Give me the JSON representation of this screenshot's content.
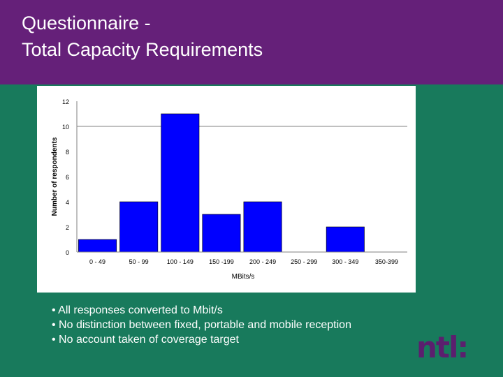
{
  "header": {
    "title_line1": "Questionnaire -",
    "title_line2": "Total Capacity Requirements"
  },
  "colors": {
    "header": "#652079",
    "background": "#187a5c",
    "bar": "#0000ff",
    "logo": "#5b1f6e"
  },
  "chart_data": {
    "type": "bar",
    "title": "",
    "xlabel": "MBits/s",
    "ylabel": "Number of respondents",
    "categories": [
      "0 - 49",
      "50 - 99",
      "100 - 149",
      "150 -199",
      "200 - 249",
      "250 - 299",
      "300 - 349",
      "350-399"
    ],
    "values": [
      1,
      4,
      11,
      3,
      4,
      0,
      2,
      0
    ],
    "ylim": [
      0,
      12
    ],
    "yticks": [
      0,
      2,
      4,
      6,
      8,
      10,
      12
    ],
    "grid": "single horizontal gridline at 10",
    "gridline": 10,
    "legend": "none"
  },
  "bullets": [
    "• All responses converted to Mbit/s",
    "• No distinction between fixed, portable and mobile reception",
    "• No account taken of coverage target"
  ],
  "logo": {
    "text": "ntl:"
  }
}
